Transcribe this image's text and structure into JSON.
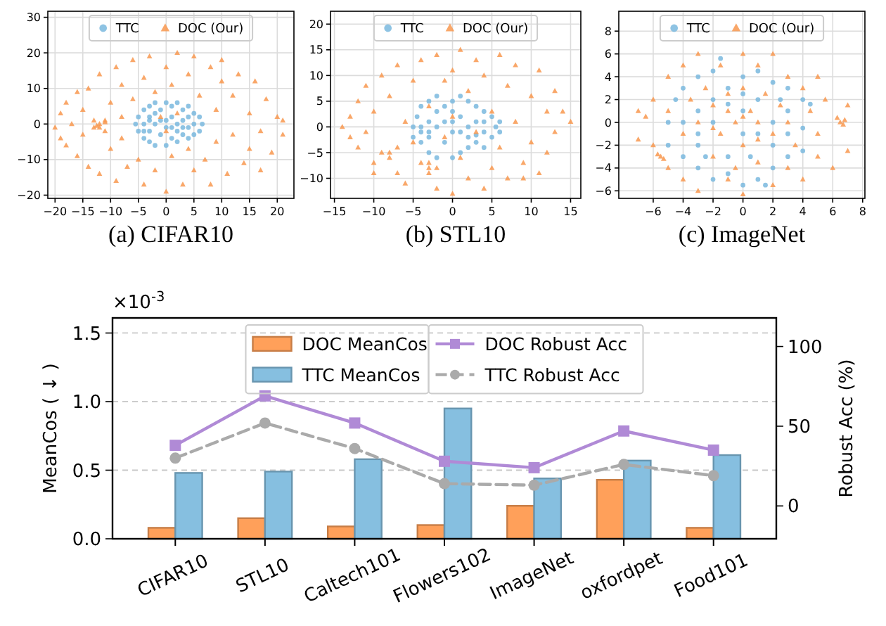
{
  "chart_data": [
    {
      "type": "scatter",
      "title": "(a) CIFAR10",
      "xlim": [
        -21.3,
        23
      ],
      "ylim": [
        -20.9,
        31.7
      ],
      "xticks": [
        {
          "value": -20,
          "label": "−20"
        },
        {
          "value": -15,
          "label": "−15"
        },
        {
          "value": -10,
          "label": "−10"
        },
        {
          "value": -5,
          "label": "−5"
        },
        0,
        5,
        10,
        15,
        20
      ],
      "yticks": [
        {
          "value": -20,
          "label": "−20"
        },
        {
          "value": -10,
          "label": "−10"
        },
        0,
        10,
        20,
        30
      ],
      "grid": true,
      "legend": "top",
      "series": [
        {
          "name": "TTC",
          "color": "#7ab8de",
          "marker": "circle",
          "x": [
            -5.5,
            -5,
            -5,
            -4,
            -4,
            -4,
            -3,
            -3,
            -3,
            -3,
            -2,
            -2,
            -2,
            -1,
            -1,
            0,
            0,
            0,
            0,
            1,
            1,
            1,
            2,
            2,
            2,
            3,
            3,
            3,
            4,
            4,
            4,
            5,
            5,
            5,
            6,
            6,
            6.5,
            -1,
            1,
            -2,
            2,
            3,
            -3,
            4,
            -4
          ],
          "values": [
            0,
            2,
            -2,
            4,
            -4,
            0,
            5,
            -5,
            2,
            -2,
            6,
            -6,
            0,
            4,
            -3,
            6,
            -6,
            1,
            -1,
            5,
            -4,
            2,
            6,
            -5,
            0,
            4,
            -3,
            1,
            5,
            -4,
            -1,
            3,
            -3,
            0,
            2,
            -2,
            0,
            1,
            -1,
            3,
            -2,
            -1,
            1,
            2,
            -2
          ]
        },
        {
          "name": "DOC (Our)",
          "color": "#f8984f",
          "marker": "triangle",
          "x": [
            -19,
            -19,
            -18,
            -18,
            -17,
            -16,
            -16,
            -15,
            -15,
            -14,
            -14,
            -13,
            -12,
            -12,
            -11,
            -11,
            -13,
            -12,
            -12,
            -10,
            -10,
            -9,
            -9,
            -8,
            -8,
            -8,
            -7,
            -6,
            -6,
            -5,
            -4,
            -4,
            -3,
            -2,
            -2,
            -1,
            0,
            0,
            0,
            1,
            1,
            2,
            2,
            3,
            4,
            4,
            5,
            5,
            6,
            7,
            8,
            8,
            9,
            9,
            10,
            10,
            11,
            12,
            12,
            13,
            14,
            15,
            15,
            16,
            17,
            17,
            18,
            19,
            20,
            21,
            21,
            -20,
            -11,
            -12.5
          ],
          "values": [
            -4,
            3,
            6,
            -6,
            0,
            9,
            -9,
            4,
            -3,
            10,
            -12,
            1,
            -1,
            0,
            -2,
            1,
            -1,
            14,
            -14,
            6,
            -7,
            16,
            -16,
            11,
            2,
            -4,
            -12,
            18,
            7,
            -10,
            13,
            -17,
            19,
            9,
            -13,
            2,
            16,
            -19,
            -2,
            11,
            -9,
            20,
            3,
            -17,
            14,
            -7,
            19,
            -13,
            8,
            -10,
            16,
            -17,
            4,
            -5,
            18,
            12,
            -14,
            8,
            -3,
            14,
            -11,
            3,
            -7,
            12,
            -2,
            -13,
            7,
            -8,
            2,
            -3,
            1,
            -1,
            0.5,
            -0.5
          ]
        }
      ]
    },
    {
      "type": "scatter",
      "title": "(b) STL10",
      "xlim": [
        -15.5,
        16.3
      ],
      "ylim": [
        -13.9,
        22.5
      ],
      "xticks": [
        {
          "value": -15,
          "label": "−15"
        },
        {
          "value": -10,
          "label": "−10"
        },
        {
          "value": -5,
          "label": "−5"
        },
        0,
        5,
        10,
        15
      ],
      "yticks": [
        {
          "value": -10,
          "label": "−10"
        },
        {
          "value": -5,
          "label": "−5"
        },
        0,
        5,
        10,
        15,
        20
      ],
      "grid": true,
      "legend": "top",
      "series": [
        {
          "name": "TTC",
          "color": "#7ab8de",
          "marker": "circle",
          "x": [
            -5,
            -5,
            -4.5,
            -4,
            -4,
            -4,
            -3,
            -3,
            -3,
            -3,
            -2,
            -2,
            -2,
            -1,
            -1,
            0,
            0,
            0,
            0,
            1,
            1,
            1,
            2,
            2,
            2,
            3,
            3,
            3,
            4,
            4,
            4,
            5,
            5,
            5.5,
            6,
            6,
            -1,
            1,
            -2,
            2,
            3,
            -3,
            4,
            -4,
            0
          ],
          "values": [
            0,
            -2,
            2,
            4,
            -3,
            0,
            5,
            -5,
            1,
            -2,
            6,
            -6,
            0,
            4,
            -3,
            5,
            -6,
            1,
            -1,
            6,
            -5,
            2,
            5,
            -4,
            0,
            4,
            -3,
            1,
            3,
            -4,
            -1,
            2,
            -2,
            0,
            1,
            -1,
            1,
            -1,
            3,
            -2,
            -1.6,
            -1,
            1,
            -1,
            3
          ]
        },
        {
          "name": "DOC (Our)",
          "color": "#f8984f",
          "marker": "triangle",
          "x": [
            -14,
            -13,
            -13,
            -12,
            -12,
            -11,
            -11,
            -10,
            -10,
            -9,
            -9,
            -8,
            -8,
            -7,
            -8,
            -7,
            -7,
            -6,
            -6,
            -5,
            -5,
            -4,
            -4,
            -3,
            -3,
            -2,
            -3,
            -3,
            -2,
            -2,
            -1,
            -1,
            0,
            0,
            0,
            1,
            1,
            2,
            2,
            3,
            3,
            4,
            4,
            5,
            5,
            6,
            6,
            7,
            7,
            8,
            8,
            9,
            10,
            10,
            11,
            11,
            12,
            12,
            13,
            13,
            14,
            15,
            9,
            -10
          ],
          "values": [
            0,
            2,
            -2,
            5,
            -4,
            8,
            -1,
            -7,
            3,
            10,
            -5,
            -5,
            -6,
            -4,
            6,
            12,
            -9,
            1,
            -11,
            9,
            -3,
            13,
            -7,
            -8,
            -9,
            -8,
            -7,
            4,
            14,
            -12,
            9,
            -2,
            11,
            -13,
            2,
            15,
            -6,
            7,
            -10,
            13,
            -1,
            -12,
            10,
            3,
            -8,
            14,
            -4,
            8,
            -10,
            12,
            1,
            -7,
            6,
            -3,
            11,
            -9,
            3,
            -5,
            7,
            -1,
            3,
            1,
            -10,
            -9
          ]
        }
      ]
    },
    {
      "type": "scatter",
      "title": "(c) ImageNet",
      "xlim": [
        -8.3,
        8.15
      ],
      "ylim": [
        -6.66,
        9.74
      ],
      "xticks": [
        {
          "value": -6,
          "label": "−6"
        },
        {
          "value": -4,
          "label": "−4"
        },
        {
          "value": -2,
          "label": "−2"
        },
        0,
        2,
        4,
        6,
        8
      ],
      "yticks": [
        {
          "value": -6,
          "label": "−6"
        },
        {
          "value": -4,
          "label": "−4"
        },
        {
          "value": -2,
          "label": "−2"
        },
        0,
        2,
        4,
        6,
        8
      ],
      "grid": true,
      "legend": "top",
      "series": [
        {
          "name": "TTC",
          "color": "#7ab8de",
          "marker": "circle",
          "x": [
            -5,
            -5,
            -4.5,
            -4,
            -4,
            -4,
            -3,
            -3,
            -3,
            -3,
            -2,
            -2,
            -2,
            -1,
            -1,
            0,
            0,
            0,
            0,
            1,
            1,
            1,
            2,
            2,
            2,
            3,
            3,
            3,
            4,
            4,
            4,
            4.5,
            -1,
            1,
            -2,
            2,
            3,
            -3,
            -1,
            0.5,
            -2.5,
            2.5,
            1.5,
            -1.5,
            0
          ],
          "values": [
            0,
            -2,
            2,
            3,
            -3,
            0,
            4,
            -4,
            1,
            -2,
            4.5,
            -5,
            0,
            3,
            -3,
            4,
            -5.5,
            1,
            -1,
            4.5,
            -5,
            2,
            3.5,
            -4,
            0,
            3,
            -3,
            1,
            2,
            -2.5,
            -0.5,
            1.6,
            1.6,
            -1,
            2,
            -2,
            -1,
            -1,
            -4.5,
            -3,
            -3,
            2,
            -5.5,
            5.6,
            2.5
          ]
        },
        {
          "name": "DOC (Our)",
          "color": "#f8984f",
          "marker": "triangle",
          "x": [
            -7,
            -7,
            -6.5,
            -6,
            -6,
            -5.5,
            -5.7,
            -5.3,
            -5,
            -5,
            -5,
            -4,
            -4,
            -4,
            -3.5,
            -3,
            -3,
            -3,
            -2.5,
            -2,
            -2,
            -1.5,
            -1.5,
            -1,
            -1,
            -0.5,
            0,
            0,
            0,
            0,
            0.5,
            1,
            1,
            1,
            1.5,
            2,
            2,
            2,
            2.5,
            3,
            3,
            3,
            3.5,
            4,
            4,
            4.5,
            5,
            5,
            5,
            5.5,
            6,
            6.5,
            6.3,
            6.7,
            6.8,
            7,
            7,
            -0.5,
            -1,
            0,
            1,
            -2
          ],
          "values": [
            1,
            -1.5,
            0.5,
            2,
            -2,
            -3,
            -2.8,
            -3.2,
            4,
            -4,
            1,
            5,
            -5,
            -1,
            2,
            6,
            -6,
            0,
            3,
            -3,
            1.5,
            5,
            -1,
            2.5,
            -5,
            0,
            6,
            -6.3,
            3,
            -2,
            1,
            5,
            -3.5,
            0,
            2.5,
            6,
            -5.5,
            -1,
            1.5,
            4,
            -4,
            0,
            -2,
            3,
            -5,
            1,
            -1,
            4,
            -3,
            2,
            -4,
            0,
            0.4,
            -0.2,
            0.2,
            -2.5,
            1.5,
            -4,
            1,
            0.5,
            -1.5,
            -0.5
          ]
        }
      ]
    },
    {
      "type": "bar",
      "categories": [
        "CIFAR10",
        "STL10",
        "Caltech101",
        "Flowers102",
        "ImageNet",
        "oxfordpet",
        "Food101"
      ],
      "ylabel": "MeanCos ( ↓ )",
      "y2label": "Robust Acc (%)",
      "ylim": [
        0,
        1.61
      ],
      "yticks": [
        {
          "value": 0,
          "label": "0.0"
        },
        0.5,
        {
          "value": 1,
          "label": "1.0"
        },
        1.5
      ],
      "y2lim": [
        -20.6,
        117.9
      ],
      "y2ticks": [
        0,
        50,
        100
      ],
      "grid": "y",
      "legend": "top",
      "annotations": [
        "×10$^{-3}$"
      ],
      "series": [
        {
          "name": "DOC MeanCos",
          "type": "bar",
          "color": "#ffa05a",
          "values": [
            0.08,
            0.15,
            0.09,
            0.1,
            0.24,
            0.43,
            0.08
          ]
        },
        {
          "name": "TTC MeanCos",
          "type": "bar",
          "color": "#86bfe0",
          "values": [
            0.48,
            0.49,
            0.58,
            0.95,
            0.44,
            0.57,
            0.61
          ]
        },
        {
          "name": "DOC Robust Acc",
          "type": "line",
          "axis": "y2",
          "color": "#b08ad6",
          "marker": "square",
          "line_style": "solid",
          "values": [
            38,
            69,
            52,
            28,
            24,
            47,
            35
          ]
        },
        {
          "name": "TTC Robust Acc",
          "type": "line",
          "axis": "y2",
          "color": "#aaaaaa",
          "marker": "circle",
          "line_style": "dashed",
          "values": [
            30,
            52,
            36,
            14,
            13,
            26,
            19
          ]
        }
      ]
    }
  ]
}
